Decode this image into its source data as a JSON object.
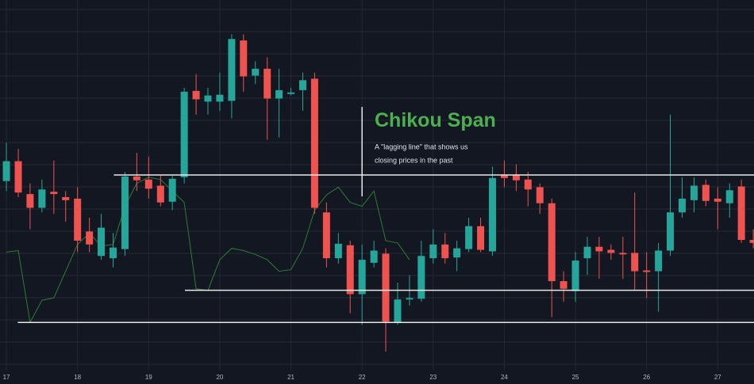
{
  "chart_data": {
    "type": "candlestick",
    "up_color": "#26a69a",
    "down_color": "#ef5350",
    "xlim": [
      16.91,
      27.51
    ],
    "xticks": [
      17,
      18,
      19,
      20,
      21,
      22,
      23,
      24,
      25,
      26,
      27
    ],
    "ylim": [
      0,
      485
    ],
    "grid": true,
    "x": [
      17,
      17.167,
      17.333,
      17.5,
      17.667,
      17.833,
      18,
      18.167,
      18.333,
      18.5,
      18.667,
      18.833,
      19,
      19.167,
      19.333,
      19.5,
      19.667,
      19.833,
      20,
      20.167,
      20.333,
      20.5,
      20.667,
      20.833,
      21,
      21.167,
      21.333,
      21.5,
      21.667,
      21.833,
      22,
      22.167,
      22.333,
      22.5,
      22.667,
      22.833,
      23,
      23.167,
      23.333,
      23.5,
      23.667,
      23.833,
      24,
      24.167,
      24.333,
      24.5,
      24.667,
      24.833,
      25,
      25.167,
      25.333,
      25.5,
      25.667,
      25.833,
      26,
      26.167,
      26.333,
      26.5,
      26.667,
      26.833,
      27,
      27.167,
      27.333,
      27.5
    ],
    "open": [
      248,
      274,
      231,
      213,
      234,
      227,
      225,
      182,
      150,
      147,
      159,
      254,
      250,
      242,
      221,
      253,
      366,
      352,
      352,
      353,
      432,
      386,
      395,
      356,
      362,
      367,
      382,
      207,
      147,
      164,
      100,
      141,
      153,
      63,
      93,
      94,
      147,
      165,
      148,
      159,
      189,
      156,
      256,
      256,
      250,
      240,
      219,
      117,
      104,
      147,
      162,
      158,
      154,
      154,
      131,
      130,
      157,
      207,
      223,
      243,
      225,
      219,
      241,
      171
    ],
    "high": [
      298,
      290,
      245,
      250,
      275,
      235,
      240,
      200,
      205,
      180,
      260,
      285,
      280,
      255,
      255,
      370,
      388,
      370,
      390,
      440,
      440,
      405,
      410,
      395,
      370,
      390,
      390,
      220,
      180,
      170,
      165,
      170,
      160,
      115,
      125,
      170,
      185,
      180,
      170,
      200,
      200,
      267,
      275,
      270,
      260,
      245,
      225,
      130,
      155,
      175,
      175,
      165,
      175,
      233,
      155,
      167,
      335,
      253,
      253,
      250,
      240,
      245,
      250,
      185
    ],
    "low": [
      235,
      227,
      185,
      207,
      205,
      195,
      155,
      155,
      145,
      135,
      150,
      235,
      225,
      215,
      210,
      245,
      335,
      335,
      340,
      330,
      365,
      375,
      302,
      305,
      360,
      340,
      205,
      135,
      140,
      75,
      60,
      135,
      25,
      60,
      85,
      90,
      140,
      140,
      130,
      155,
      155,
      150,
      240,
      235,
      215,
      205,
      70,
      90,
      90,
      125,
      120,
      145,
      120,
      105,
      95,
      77,
      150,
      200,
      207,
      215,
      185,
      200,
      167,
      160
    ],
    "close": [
      274,
      233,
      213,
      237,
      231,
      223,
      170,
      165,
      187,
      161,
      254,
      249,
      238,
      220,
      251,
      365,
      355,
      360,
      361,
      434,
      385,
      395,
      356,
      367,
      364,
      380,
      213,
      147,
      166,
      100,
      145,
      157,
      64,
      93,
      95,
      150,
      165,
      147,
      160,
      189,
      158,
      252,
      252,
      249,
      237,
      219,
      117,
      107,
      144,
      162,
      156,
      154,
      152,
      130,
      129,
      157,
      207,
      225,
      242,
      222,
      221,
      236,
      171,
      167
    ],
    "lagging_line": {
      "color": "#2e7d32",
      "x": [
        17,
        17.167,
        17.333,
        17.5,
        17.667,
        17.833,
        18,
        18.167,
        18.333,
        18.5,
        18.667,
        18.833,
        19,
        19.167,
        19.333,
        19.5,
        19.667,
        19.833,
        20,
        20.167,
        20.333,
        20.5,
        20.667,
        20.833,
        21,
        21.167,
        21.333,
        21.5,
        21.667,
        21.833,
        22,
        22.167,
        22.333,
        22.5,
        22.667
      ],
      "values": [
        155,
        157,
        63,
        92,
        95,
        130,
        165,
        180,
        163,
        165,
        215,
        245,
        253,
        250,
        235,
        220,
        107,
        105,
        145,
        160,
        157,
        152,
        145,
        130,
        132,
        160,
        210,
        230,
        240,
        220,
        215,
        235,
        170,
        167,
        145
      ]
    },
    "levels": [
      {
        "value": 256,
        "x_start": 18.51
      },
      {
        "value": 105,
        "x_start": 19.51
      },
      {
        "value": 63,
        "x_start": 17.16
      }
    ],
    "pointer": {
      "x": 22,
      "top": 345,
      "bottom": 228
    },
    "annotation": {
      "title": "Chikou Span",
      "title_color": "#4caf50",
      "lines": [
        "A \"lagging line\" that shows us",
        "closing prices in the past"
      ]
    }
  }
}
